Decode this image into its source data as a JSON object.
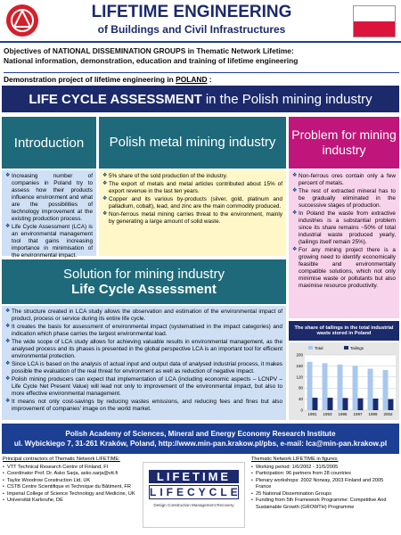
{
  "header": {
    "title": "LIFETIME ENGINEERING",
    "subtitle": "of Buildings and Civil Infrastructures"
  },
  "objectives": {
    "line1": "Objectives of NATIONAL DISSEMINATION GROUPS in Thematic Network Lifetime:",
    "line2": "National information, demonstration, education and training of lifetime engineering"
  },
  "demo": {
    "lead": "Demonstration project of lifetime engineering in",
    "country": "POLAND",
    "tail": ":"
  },
  "banner": {
    "bold": "LIFE CYCLE ASSESSMENT",
    "rest": "in the Polish mining industry"
  },
  "introduction": {
    "heading": "Introduction",
    "items": [
      "Increasing number of companies in Poland try to assess how their products influence environment and what are the possibilities of technology improvement at the existing production process.",
      "Life Cycle Assessment (LCA) is an environmental management tool that gains increasing importance in minimisation of the environmental impact."
    ]
  },
  "mining": {
    "heading": "Polish metal mining industry",
    "items": [
      "5% share of the sold production of the industry.",
      "The export of metals and metal articles contributed about 15% of export revenue in the last ten years.",
      "Copper and its various by-products (silver, gold, platinum and palladium, cobalt), lead, and zinc are the main commodity produced.",
      "Non-ferrous metal mining carries threat to the environment, mainly by generating a large amount of solid waste."
    ]
  },
  "problem": {
    "heading": "Problem for mining industry",
    "items": [
      "Non-ferrous ores contain only a few percent of metals.",
      "The rest of extracted mineral has to be gradually eliminated in the successive stages of production.",
      "In Poland the waste from extractive industries is a substantial problem since its share remains ~50% of total industrial waste produced yearly, (tailings itself remain 25%).",
      "For any mining project there is a growing need to identify economically feasible and environmentally compatible solutions, which not only minimise waste or pollutants but also maximise resource productivity."
    ]
  },
  "solution": {
    "heading": "Solution for mining industry",
    "subheading": "Life Cycle Assessment",
    "items": [
      "The structure created in LCA study allows the observation and estimation of the environmental impact of product, process or service during its entire life cycle.",
      "It creates the basis for assessment of environmental impact (systematised in the impact categories) and indication which phase carries the largest environmental load.",
      "The wide scope of LCA study allows for achieving valuable results in environmental management, as the analysed process and its phases is presented in the global perspective LCA is an important tool for efficient environmental protection.",
      "Since LCA is based on the analysis of actual input and output data of analysed industrial process, it makes possible the evaluation of the real threat for environment as well as reduction of negative impact.",
      "Polish mining producers can expect that implementation of LCA (including economic aspects – LCNPV – Life Cycle Net Present Value) will lead not only to improvement of the environmental impact, but also to more effective environmental management.",
      "It means not only cost-savings by reducing wastes emissions, and reducing fees and fines but also improvement of companies' image on the world market."
    ]
  },
  "chart": {
    "title": "The share of tailings in the total industrial waste stored in Poland",
    "categories": [
      "1991",
      "1993",
      "1995",
      "1997",
      "1999",
      "2002"
    ],
    "series": [
      {
        "name": "Total",
        "color": "#a8c8f0",
        "values": [
          175,
          170,
          165,
          160,
          150,
          145
        ]
      },
      {
        "name": "Tailings",
        "color": "#1a2a6c",
        "values": [
          45,
          45,
          44,
          43,
          42,
          40
        ]
      }
    ],
    "ylim": [
      0,
      200
    ],
    "yticks": [
      0,
      40,
      80,
      120,
      160,
      200
    ]
  },
  "footer": {
    "line1": "Polish Academy of Sciences, Mineral and Energy Economy Research Institute",
    "line2": "ul. Wybickiego 7, 31-261 Kraków, Poland, http://www.min-pan.krakow.pl/pbs, e-mail: lca@min-pan.krakow.pl"
  },
  "contractors": {
    "heading": "Principal contractors of Thematic Network LIFETIME:",
    "items": [
      "VTT Technical Research Centre of Finland, FI",
      "Coordinator Prof. Dr. Asko Sarja, asko.sarja@vtt.fi",
      "Taylor Woodrow Construction Ltd, UK",
      "CSTB Centre Scientifique et Technique du Bâtiment, FR",
      "Imperial College of Science Technology and Medicine, UK",
      "Universität Karlsruhe, DE"
    ]
  },
  "logo": {
    "top": "LIFETIME",
    "bottom": "LIFECYCLE",
    "tagline": "Design  Construction  Management  Recovery"
  },
  "figures": {
    "heading": "Thematic Network LIFETIME in figures:",
    "items": [
      "Working period: 1/6/2002 - 31/5/2005",
      "Participation: 96 partners from 28 countries",
      "Plenary workshops: 2002 Norway, 2003 Finland and 2005 France",
      "25 National Dissemination Groups",
      "Funding from 5th Framework Programme: Competitive And Sustainable Growth (GROWTH) Programme"
    ]
  }
}
